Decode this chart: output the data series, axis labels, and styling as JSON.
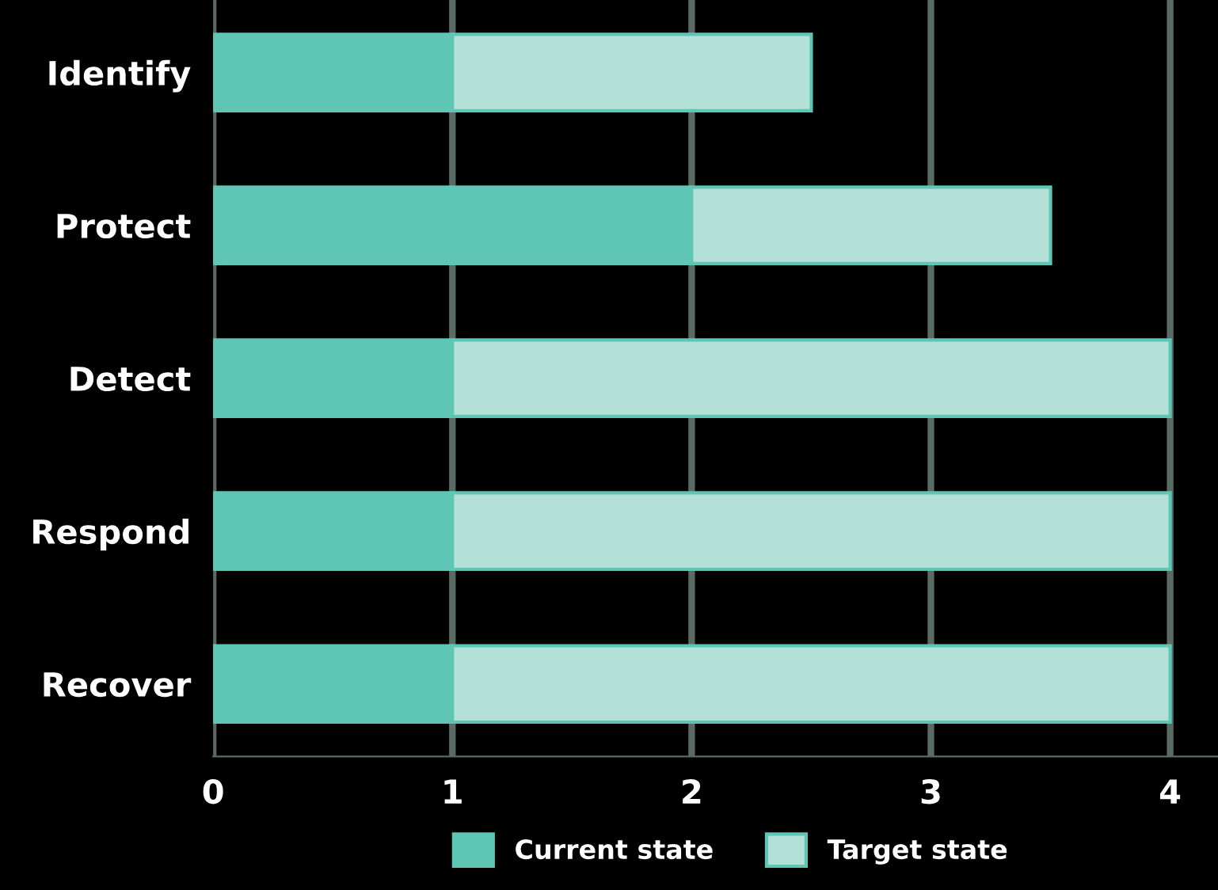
{
  "chart_data": {
    "type": "bar",
    "orientation": "horizontal",
    "stacked": true,
    "categories": [
      "Identify",
      "Protect",
      "Detect",
      "Respond",
      "Recover"
    ],
    "series": [
      {
        "name": "Current state",
        "color": "#5fc6b5",
        "values": [
          1,
          2,
          1,
          1,
          1
        ]
      },
      {
        "name": "Target state",
        "color": "#b3e0d7",
        "values": [
          1.5,
          1.5,
          3,
          3,
          3
        ]
      }
    ],
    "xlim": [
      0,
      4.2
    ],
    "xticks": [
      0,
      1,
      2,
      3,
      4
    ],
    "grid": "x",
    "legend": "bottom"
  }
}
